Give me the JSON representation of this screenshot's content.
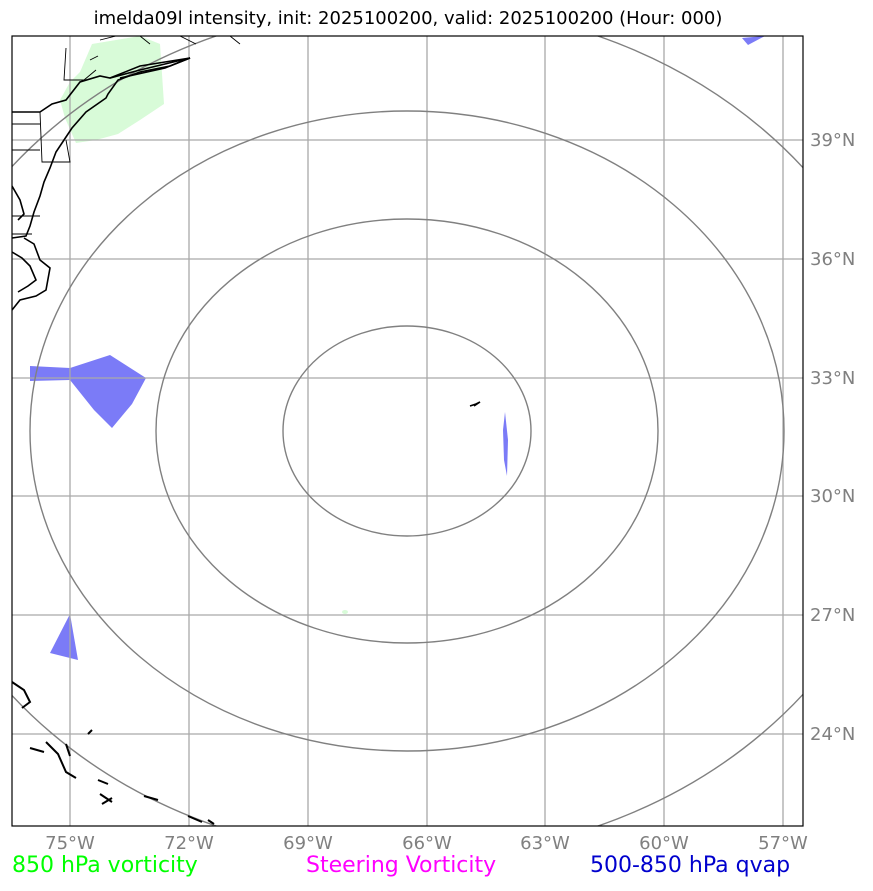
{
  "title": "imelda09l intensity, init: 2025100200, valid: 2025100200 (Hour: 000)",
  "map": {
    "lat_labels": [
      "39°N",
      "36°N",
      "33°N",
      "30°N",
      "27°N",
      "24°N"
    ],
    "lon_labels": [
      "75°W",
      "72°W",
      "69°W",
      "66°W",
      "63°W",
      "60°W",
      "57°W"
    ],
    "lat_lines": [
      39,
      36,
      33,
      30,
      27,
      24
    ],
    "lon_lines": [
      -75,
      -72,
      -69,
      -66,
      -63,
      -60,
      -57
    ],
    "extent": {
      "lon_min": -76.4,
      "lon_max": -56.5,
      "lat_min": 21.8,
      "lat_max": 41.8
    },
    "colors": {
      "grid": "#a9a9a9",
      "ring": "#808080",
      "coast": "#000000",
      "tick_label": "#808080",
      "vorticity_850": "#d8fbd8",
      "qvap": "#7b7bf7"
    },
    "storm_center": {
      "lon": -66.0,
      "lat": 31.7
    }
  },
  "legend": {
    "vorticity_850": {
      "label": "850 hPa vorticity",
      "color": "#00ff00"
    },
    "steering": {
      "label": "Steering Vorticity",
      "color": "#ff00ff"
    },
    "qvap": {
      "label": "500-850 hPa qvap",
      "color": "#0000cd"
    }
  }
}
